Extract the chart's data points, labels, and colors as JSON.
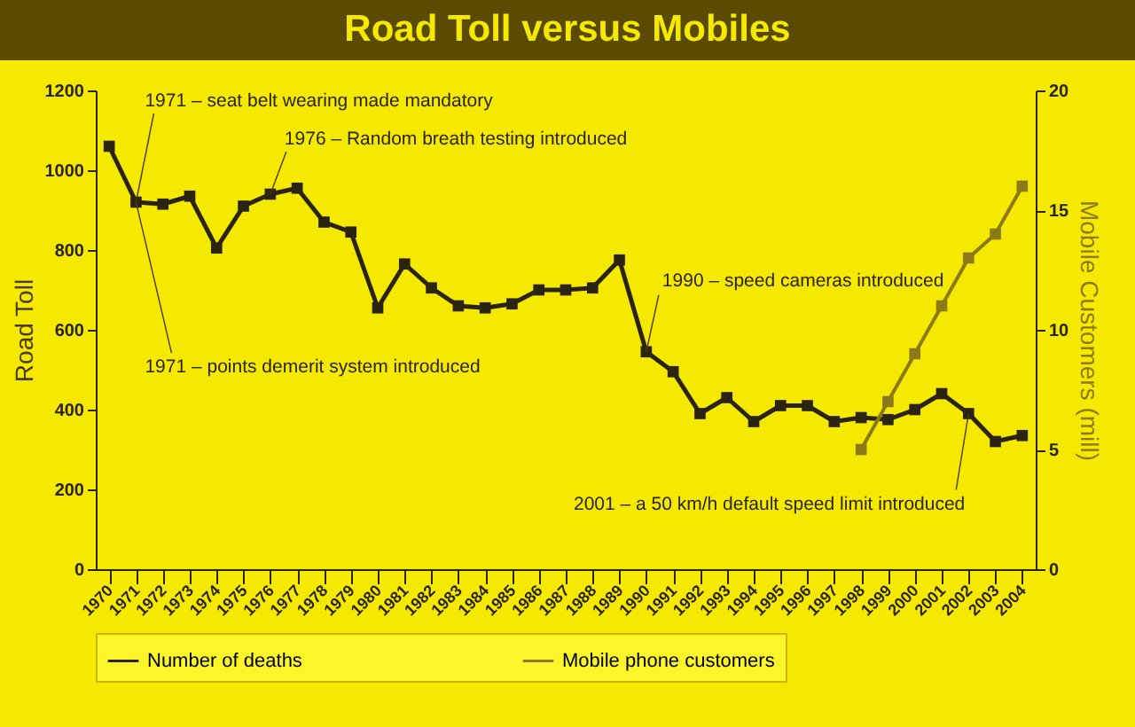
{
  "chart_data": {
    "type": "line",
    "title": "Road Toll versus Mobiles",
    "ylabel": "Road Toll",
    "y2label": "Mobile Customers (mill)",
    "categories": [
      "1970",
      "1971",
      "1972",
      "1973",
      "1974",
      "1975",
      "1976",
      "1977",
      "1978",
      "1979",
      "1980",
      "1981",
      "1982",
      "1983",
      "1984",
      "1985",
      "1986",
      "1987",
      "1988",
      "1989",
      "1990",
      "1991",
      "1992",
      "1993",
      "1994",
      "1995",
      "1996",
      "1997",
      "1998",
      "1999",
      "2000",
      "2001",
      "2002",
      "2003",
      "2004"
    ],
    "series": [
      {
        "name": "Number of deaths",
        "color": "#2b2410",
        "values": [
          1060,
          920,
          915,
          935,
          805,
          910,
          940,
          955,
          870,
          845,
          655,
          765,
          705,
          660,
          655,
          665,
          700,
          700,
          705,
          775,
          545,
          495,
          390,
          430,
          370,
          410,
          410,
          370,
          380,
          375,
          400,
          440,
          390,
          320,
          335
        ]
      },
      {
        "name": "Mobile phone customers",
        "color": "#8c7a18",
        "axis": "y2",
        "values": [
          null,
          null,
          null,
          null,
          null,
          null,
          null,
          null,
          null,
          null,
          null,
          null,
          null,
          null,
          null,
          null,
          null,
          null,
          null,
          null,
          null,
          null,
          null,
          null,
          null,
          null,
          null,
          null,
          5,
          7,
          9,
          11,
          13,
          14,
          16
        ]
      }
    ],
    "ylim": [
      0,
      1200
    ],
    "yticks": [
      0,
      200,
      400,
      600,
      800,
      1000,
      1200
    ],
    "y2lim": [
      0,
      20
    ],
    "y2ticks": [
      0,
      5,
      10,
      15,
      20
    ],
    "annotations": [
      {
        "text": "1971 – seat belt wearing made mandatory",
        "x": "1971",
        "y": 920
      },
      {
        "text": "1976 – Random breath testing introduced",
        "x": "1976",
        "y": 940
      },
      {
        "text": "1971 – points demerit system introduced",
        "x": "1971",
        "y": 920
      },
      {
        "text": "1990 – speed cameras introduced",
        "x": "1990",
        "y": 545
      },
      {
        "text": "2001 – a 50 km/h default speed limit introduced",
        "x": "2002",
        "y": 390
      }
    ],
    "marker": "square",
    "legend": "bottom"
  }
}
